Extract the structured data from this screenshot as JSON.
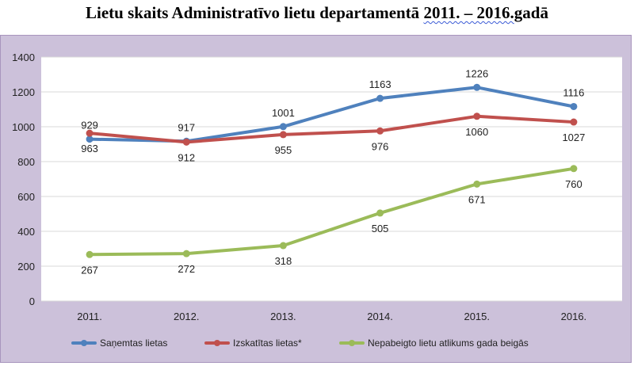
{
  "title_main": "Lietu skaits Administratīvo lietu departamentā ",
  "title_years": "2011. – 2016.",
  "title_tail": "gadā",
  "chart_data": {
    "type": "line",
    "title": "Lietu skaits Administratīvo lietu departamentā 2011. – 2016.gadā",
    "categories": [
      "2011.",
      "2012.",
      "2013.",
      "2014.",
      "2015.",
      "2016."
    ],
    "ylim": [
      0,
      1400
    ],
    "yticks": [
      0,
      200,
      400,
      600,
      800,
      1000,
      1200,
      1400
    ],
    "grid": true,
    "legend_position": "bottom",
    "series": [
      {
        "name": "Saņemtas lietas",
        "color": "#4f81bd",
        "values": [
          929,
          917,
          1001,
          1163,
          1226,
          1116
        ]
      },
      {
        "name": "Izskatītas lietas*",
        "color": "#c0504d",
        "values": [
          963,
          912,
          955,
          976,
          1060,
          1027
        ]
      },
      {
        "name": "Nepabeigto lietu atlikums gada beigās",
        "color": "#9bbb59",
        "values": [
          267,
          272,
          318,
          505,
          671,
          760
        ]
      }
    ]
  }
}
